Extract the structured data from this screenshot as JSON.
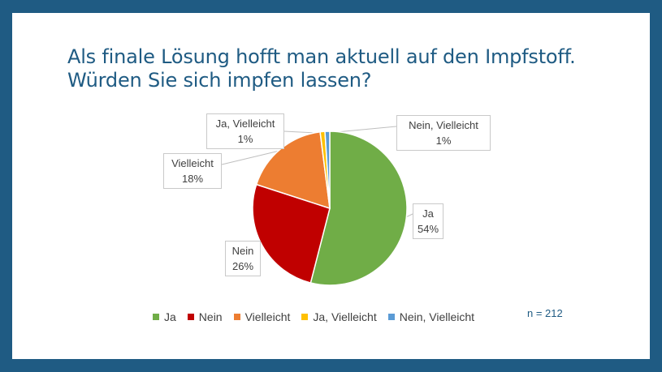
{
  "title_line1": "Als finale Lösung hofft man aktuell auf den Impfstoff.",
  "title_line2": "Würden Sie sich impfen lassen?",
  "n_note": "n = 212",
  "chart_data": {
    "type": "pie",
    "categories": [
      "Ja",
      "Nein",
      "Vielleicht",
      "Ja, Vielleicht",
      "Nein, Vielleicht"
    ],
    "values": [
      54,
      26,
      18,
      1,
      1
    ],
    "value_labels": [
      "54%",
      "26%",
      "18%",
      "1%",
      "1%"
    ],
    "colors": [
      "#70ad47",
      "#c00000",
      "#ed7d31",
      "#ffc000",
      "#5b9bd5"
    ],
    "legend_position": "bottom"
  }
}
